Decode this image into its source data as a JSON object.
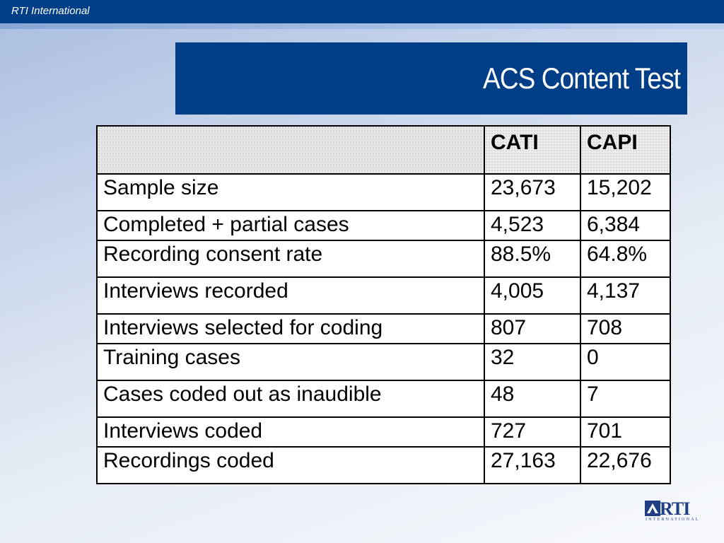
{
  "header": {
    "organization": "RTI International"
  },
  "slide": {
    "title": "ACS Content Test"
  },
  "table": {
    "columns": [
      "",
      "CATI",
      "CAPI"
    ],
    "rows": [
      {
        "label": "Sample size",
        "cati": "23,673",
        "capi": "15,202"
      },
      {
        "label": "Completed + partial cases",
        "cati": "4,523",
        "capi": "6,384"
      },
      {
        "label": "Recording consent rate",
        "cati": "88.5%",
        "capi": "64.8%"
      },
      {
        "label": "Interviews recorded",
        "cati": "4,005",
        "capi": "4,137"
      },
      {
        "label": "Interviews selected for coding",
        "cati": "807",
        "capi": "708"
      },
      {
        "label": "Training cases",
        "cati": "32",
        "capi": "0"
      },
      {
        "label": "Cases coded out as inaudible",
        "cati": "48",
        "capi": "7"
      },
      {
        "label": "Interviews coded",
        "cati": "727",
        "capi": "701"
      },
      {
        "label": "Recordings coded",
        "cati": "27,163",
        "capi": "22,676"
      }
    ]
  },
  "logo": {
    "text": "RTI",
    "subtext": "INTERNATIONAL"
  },
  "colors": {
    "brand": "#003f87",
    "logo": "#1f3f82"
  }
}
